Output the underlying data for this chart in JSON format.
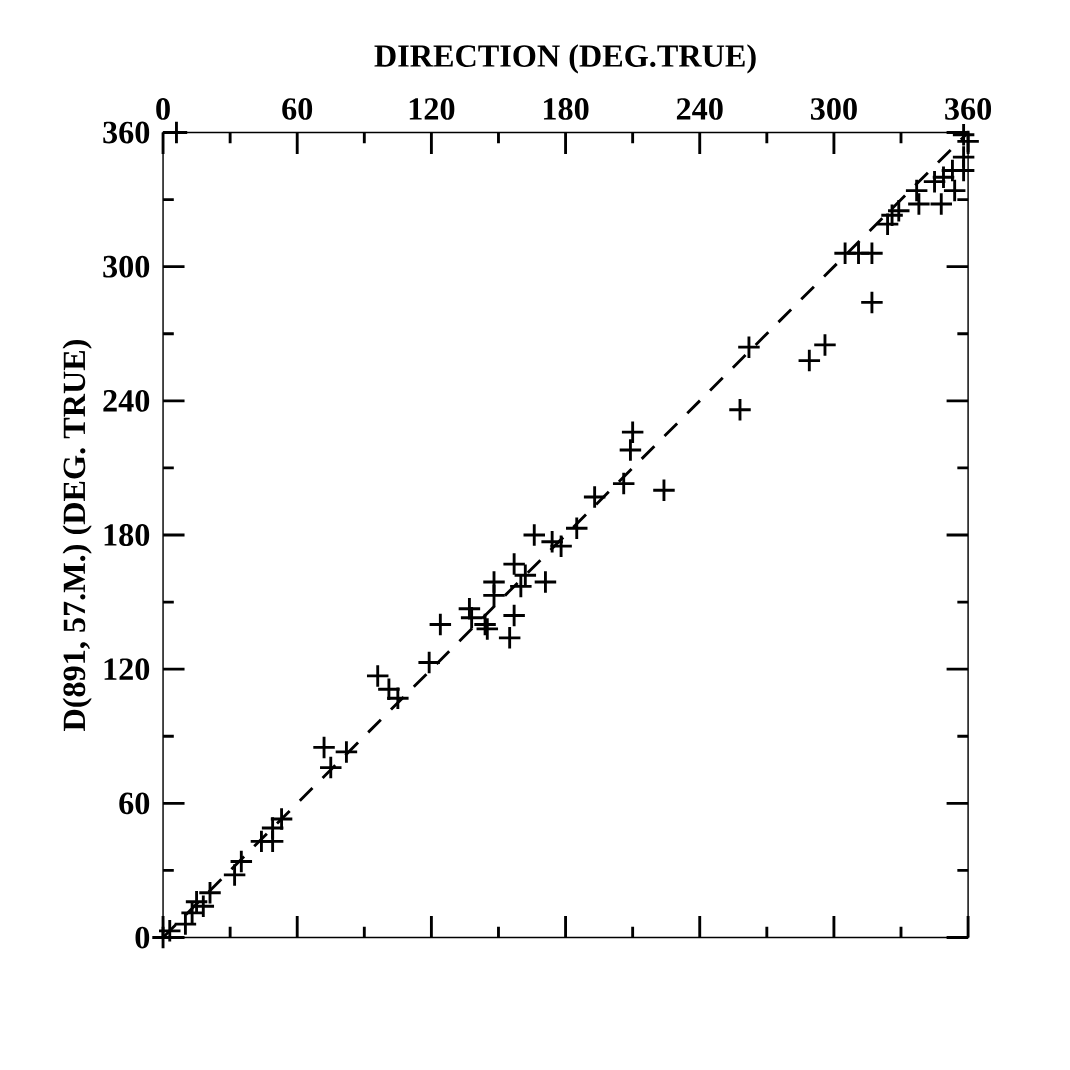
{
  "chart_data": {
    "type": "scatter",
    "xlabel": "DIRECTION (DEG.TRUE)",
    "ylabel": "D(891, 57.M.) (DEG. TRUE)",
    "xlim": [
      0,
      360
    ],
    "xticks": [
      0,
      60,
      120,
      180,
      240,
      300,
      360
    ],
    "ylim": [
      0,
      360
    ],
    "yticks": [
      0,
      60,
      120,
      180,
      240,
      300,
      360
    ],
    "marker": "cross",
    "series": [
      {
        "color": "#000000",
        "x": [
          6,
          0,
          3,
          10,
          13,
          15,
          18,
          21,
          32,
          35,
          44,
          49,
          49,
          53,
          72,
          75,
          82,
          96,
          101,
          105,
          119,
          124,
          137,
          138,
          144,
          145,
          148,
          148,
          155,
          157,
          157,
          160,
          162,
          166,
          171,
          174,
          178,
          185,
          193,
          206,
          209,
          210,
          224,
          258,
          262,
          289,
          296,
          305,
          311,
          317,
          317,
          324,
          326,
          329,
          337,
          338,
          345,
          348,
          349,
          353,
          354,
          358,
          360,
          358,
          358
        ],
        "values": [
          360,
          0,
          3,
          6,
          11,
          16,
          14,
          20,
          28,
          34,
          43,
          49,
          43,
          53,
          85,
          76,
          83,
          117,
          111,
          107,
          123,
          140,
          147,
          143,
          140,
          138,
          159,
          153,
          134,
          167,
          144,
          157,
          162,
          180,
          159,
          177,
          175,
          183,
          197,
          203,
          218,
          226,
          200,
          236,
          264,
          258,
          265,
          306,
          306,
          306,
          284,
          319,
          323,
          325,
          334,
          328,
          338,
          328,
          340,
          343,
          334,
          349,
          356,
          343,
          359
        ]
      },
      {
        "type": "line",
        "color": "#000000",
        "marker": "none",
        "line_style": "dashed",
        "x": [
          0,
          360
        ],
        "values": [
          0,
          360
        ]
      }
    ]
  }
}
